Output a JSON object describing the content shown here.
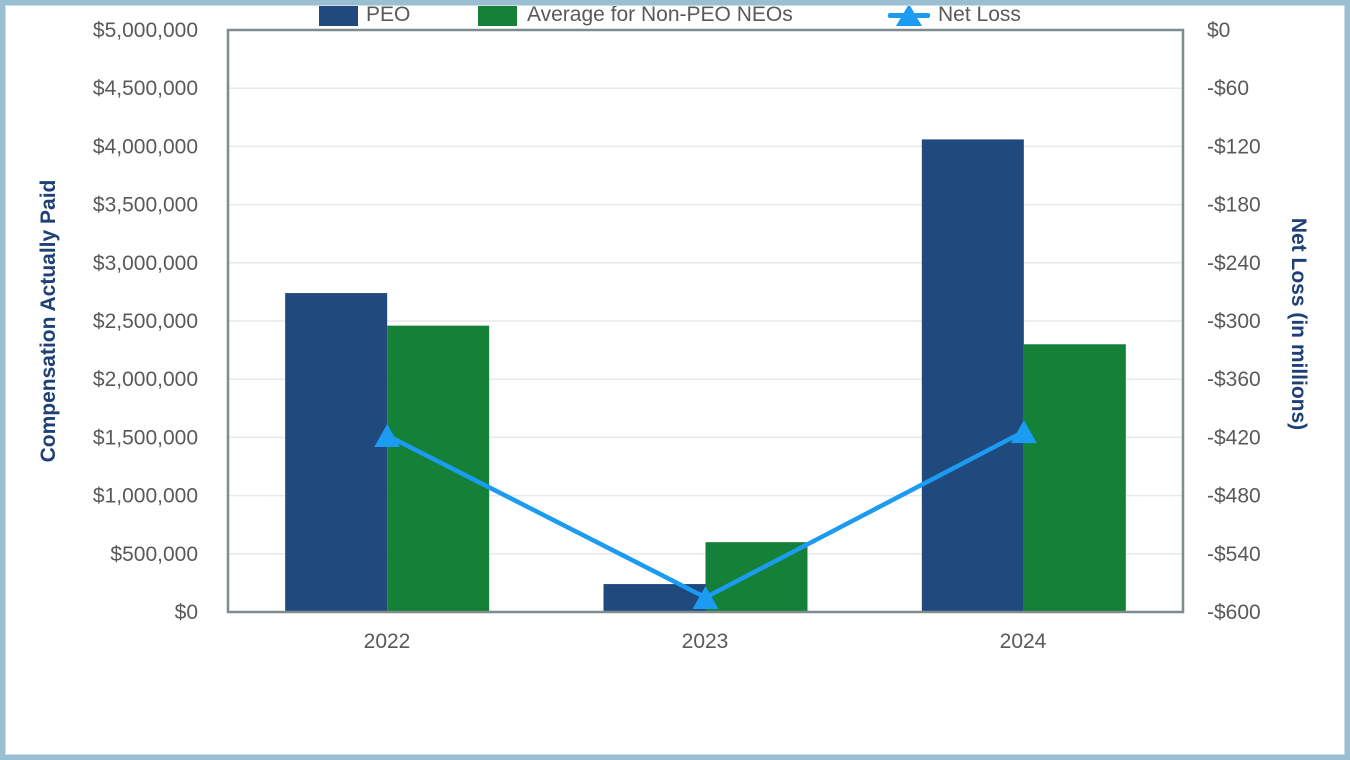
{
  "chart_data": {
    "type": "bar",
    "subtype": "grouped-bars-with-line-overlay",
    "categories": [
      "2022",
      "2023",
      "2024"
    ],
    "series": [
      {
        "name": "PEO",
        "type": "bar",
        "axis": "left",
        "color": "#20497D",
        "values": [
          2740000,
          240000,
          4060000
        ]
      },
      {
        "name": "Average for Non-PEO NEOs",
        "type": "bar",
        "axis": "left",
        "color": "#148038",
        "values": [
          2460000,
          600000,
          2300000
        ]
      },
      {
        "name": "Net Loss",
        "type": "line",
        "axis": "right",
        "color": "#1B9CF2",
        "marker": "triangle-up",
        "values": [
          -418,
          -585,
          -414
        ]
      }
    ],
    "left_axis": {
      "title": "Compensation Actually Paid",
      "min": 0,
      "max": 5000000,
      "step": 500000,
      "tick_labels": [
        "$5,000,000",
        "$4,500,000",
        "$4,000,000",
        "$3,500,000",
        "$3,000,000",
        "$2,500,000",
        "$2,000,000",
        "$1,500,000",
        "$1,000,000",
        "$500,000",
        "$0"
      ],
      "tick_values": [
        5000000,
        4500000,
        4000000,
        3500000,
        3000000,
        2500000,
        2000000,
        1500000,
        1000000,
        500000,
        0
      ]
    },
    "right_axis": {
      "title": "Net Loss (in millions)",
      "min": -600,
      "max": 0,
      "step": 60,
      "tick_labels": [
        "$0",
        "-$60",
        "-$120",
        "-$180",
        "-$240",
        "-$300",
        "-$360",
        "-$420",
        "-$480",
        "-$540",
        "-$600"
      ],
      "tick_values": [
        0,
        -60,
        -120,
        -180,
        -240,
        -300,
        -360,
        -420,
        -480,
        -540,
        -600
      ]
    },
    "grid": true,
    "legend": {
      "position": "bottom",
      "items": [
        "PEO",
        "Average for Non-PEO NEOs",
        "Net Loss"
      ]
    }
  },
  "colors": {
    "bar_blue": "#20497D",
    "bar_green": "#148038",
    "line_blue": "#1B9CF2",
    "axis_title_navy": "#1F4077",
    "tick_text_gray": "#595959",
    "gridline_gray": "#E9E9E9",
    "plot_border_gray": "#7F8C8D",
    "frame_border_blue": "#9ABFD3"
  }
}
